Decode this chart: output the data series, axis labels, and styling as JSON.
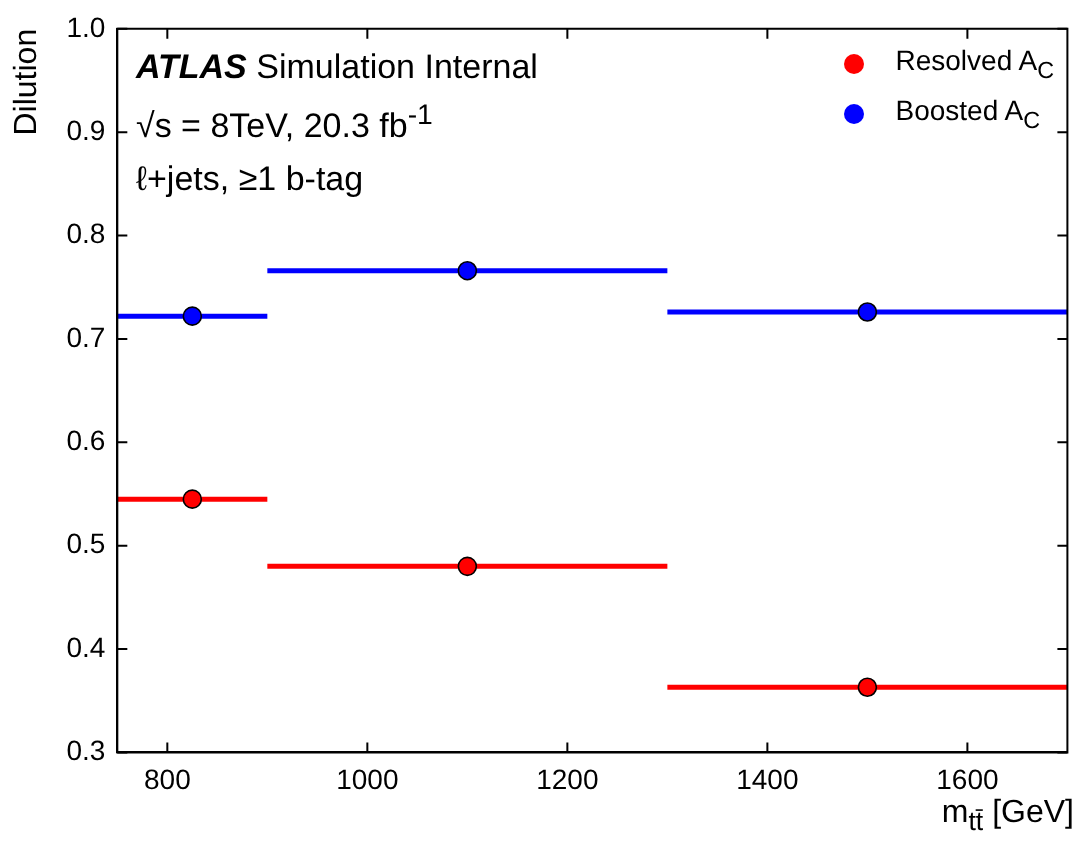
{
  "chart_data": {
    "type": "scatter",
    "xlabel": "m$_{tt̄}$ [GeV]",
    "ylabel": "Dilution",
    "annotations": [
      "ATLAS Simulation Internal",
      "√s = 8TeV, 20.3 fb$^{-1}$",
      "ℓ+jets, ≥1 b-tag"
    ],
    "x": [
      825,
      1100,
      1500
    ],
    "series": [
      {
        "name": "Resolved A$_{C}$",
        "color": "#ff0000",
        "values": [
          0.545,
          0.48,
          0.363
        ],
        "xerrors": [
          75,
          200,
          200
        ]
      },
      {
        "name": "Boosted A$_{C}$",
        "color": "#0000ff",
        "values": [
          0.722,
          0.766,
          0.726
        ],
        "xerrors": [
          75,
          200,
          200
        ]
      }
    ],
    "xlim": [
      750,
      1700
    ],
    "ylim": [
      0.3,
      1.0
    ],
    "xticks": [
      800,
      1000,
      1200,
      1400,
      1600
    ],
    "yticks": [
      0.3,
      0.4,
      0.5,
      0.6,
      0.7,
      0.8,
      0.9,
      {
        "value": 1.0,
        "label": "1.0"
      }
    ],
    "grid": false,
    "legend": "top right",
    "marker": "circle"
  }
}
